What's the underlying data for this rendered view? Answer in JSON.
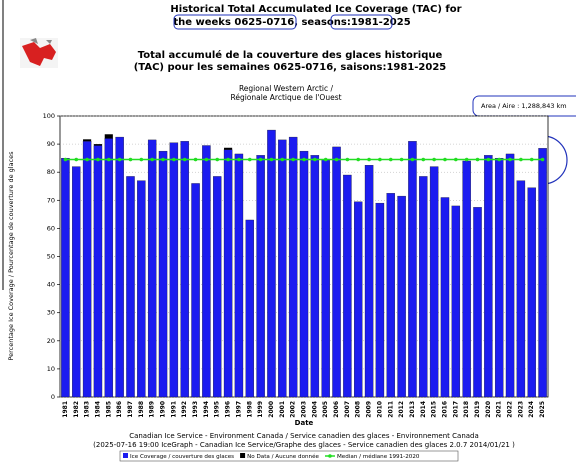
{
  "chart_data": {
    "type": "bar",
    "title": [
      "Historical Total Accumulated Ice Coverage (TAC) for",
      "the weeks 0625-0716, seasons:1981-2025"
    ],
    "subtitle": [
      "Total accumulé de la couverture des glaces historique",
      "(TAC) pour les semaines 0625-0716, saisons:1981-2025"
    ],
    "region": [
      "Regional Western Arctic /",
      "Régionale Arctique de l'Ouest"
    ],
    "annotation": "Area / Aire : 1,288,843 km",
    "ylabel": "Percentage Ice Coverage / Pourcentage de couverture de glaces",
    "xlabel": "Date",
    "footer": [
      "Canadian Ice Service - Environment Canada / Service canadien des glaces - Environnement Canada",
      "(2025-07-16 19:00 IceGraph - Canadian Ice Service/Graphe des glaces - Service canadien des glaces 2.0.7 2014/01/21 )"
    ],
    "categories": [
      "1981",
      "1982",
      "1983",
      "1984",
      "1985",
      "1986",
      "1987",
      "1988",
      "1989",
      "1990",
      "1991",
      "1992",
      "1993",
      "1994",
      "1995",
      "1996",
      "1997",
      "1998",
      "1999",
      "2000",
      "2001",
      "2002",
      "2003",
      "2004",
      "2005",
      "2006",
      "2007",
      "2008",
      "2009",
      "2010",
      "2011",
      "2012",
      "2013",
      "2014",
      "2015",
      "2016",
      "2017",
      "2018",
      "2019",
      "2020",
      "2021",
      "2022",
      "2023",
      "2024",
      "2025"
    ],
    "series": [
      {
        "name": "Ice Coverage / couverture des glaces",
        "color": "#1c1cf0",
        "values": [
          85,
          82,
          91,
          89.5,
          92,
          92.5,
          78.5,
          77,
          91.5,
          87.5,
          90.5,
          91,
          76,
          89.5,
          78.5,
          88,
          86.5,
          63,
          86,
          95,
          91.5,
          92.5,
          87.5,
          86,
          84.5,
          89,
          79,
          69.5,
          82.5,
          69,
          72.5,
          71.5,
          91,
          78.5,
          82,
          71,
          68,
          84,
          67.5,
          86,
          85,
          86.5,
          77,
          74.5,
          88.5
        ]
      },
      {
        "name": "No Data / Aucune donnée",
        "color": "#000000",
        "values": [
          null,
          null,
          0.7,
          0.5,
          1.5,
          null,
          null,
          null,
          null,
          null,
          null,
          null,
          null,
          null,
          null,
          0.7,
          null,
          null,
          null,
          null,
          null,
          null,
          null,
          null,
          null,
          null,
          null,
          null,
          null,
          null,
          null,
          null,
          null,
          null,
          null,
          null,
          null,
          null,
          null,
          null,
          null,
          null,
          null,
          null,
          null
        ]
      },
      {
        "name": "Median / médiane 1991-2020",
        "color": "#22dd22",
        "values": [
          84.5,
          84.5,
          84.5,
          84.5,
          84.5,
          84.5,
          84.5,
          84.5,
          84.5,
          84.5,
          84.5,
          84.5,
          84.5,
          84.5,
          84.5,
          84.5,
          84.5,
          84.5,
          84.5,
          84.5,
          84.5,
          84.5,
          84.5,
          84.5,
          84.5,
          84.5,
          84.5,
          84.5,
          84.5,
          84.5,
          84.5,
          84.5,
          84.5,
          84.5,
          84.5,
          84.5,
          84.5,
          84.5,
          84.5,
          84.5,
          84.5,
          84.5,
          84.5,
          84.5,
          84.5
        ]
      }
    ],
    "ylim": [
      0,
      100
    ],
    "yticks": [
      0,
      10,
      20,
      30,
      40,
      50,
      60,
      70,
      80,
      90,
      100
    ],
    "grid": true
  }
}
